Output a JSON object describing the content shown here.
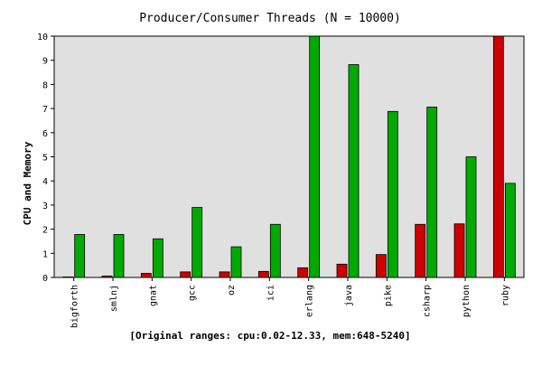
{
  "chart_data": {
    "type": "bar",
    "title": "Producer/Consumer Threads (N = 10000)",
    "xlabel": "",
    "ylabel": "CPU and Memory",
    "caption": "[Original ranges: cpu:0.02-12.33, mem:648-5240]",
    "ylim": [
      0,
      10
    ],
    "yticks": [
      "0",
      "1",
      "2",
      "3",
      "4",
      "5",
      "6",
      "7",
      "8",
      "9",
      "10"
    ],
    "grid": false,
    "legend": "none",
    "categories": [
      "bigforth",
      "smlnj",
      "gnat",
      "gcc",
      "oz",
      "ici",
      "erlang",
      "java",
      "pike",
      "csharp",
      "python",
      "ruby"
    ],
    "series": [
      {
        "color": "#cc0000",
        "values": [
          0.02,
          0.06,
          0.17,
          0.23,
          0.23,
          0.25,
          0.4,
          0.55,
          0.95,
          2.2,
          2.22,
          10.0
        ]
      },
      {
        "color": "#00aa00",
        "values": [
          1.78,
          1.78,
          1.6,
          2.9,
          1.27,
          2.2,
          10.0,
          8.82,
          6.88,
          7.06,
          5.0,
          3.9
        ]
      }
    ],
    "plot_background": "#e0e0e0"
  }
}
